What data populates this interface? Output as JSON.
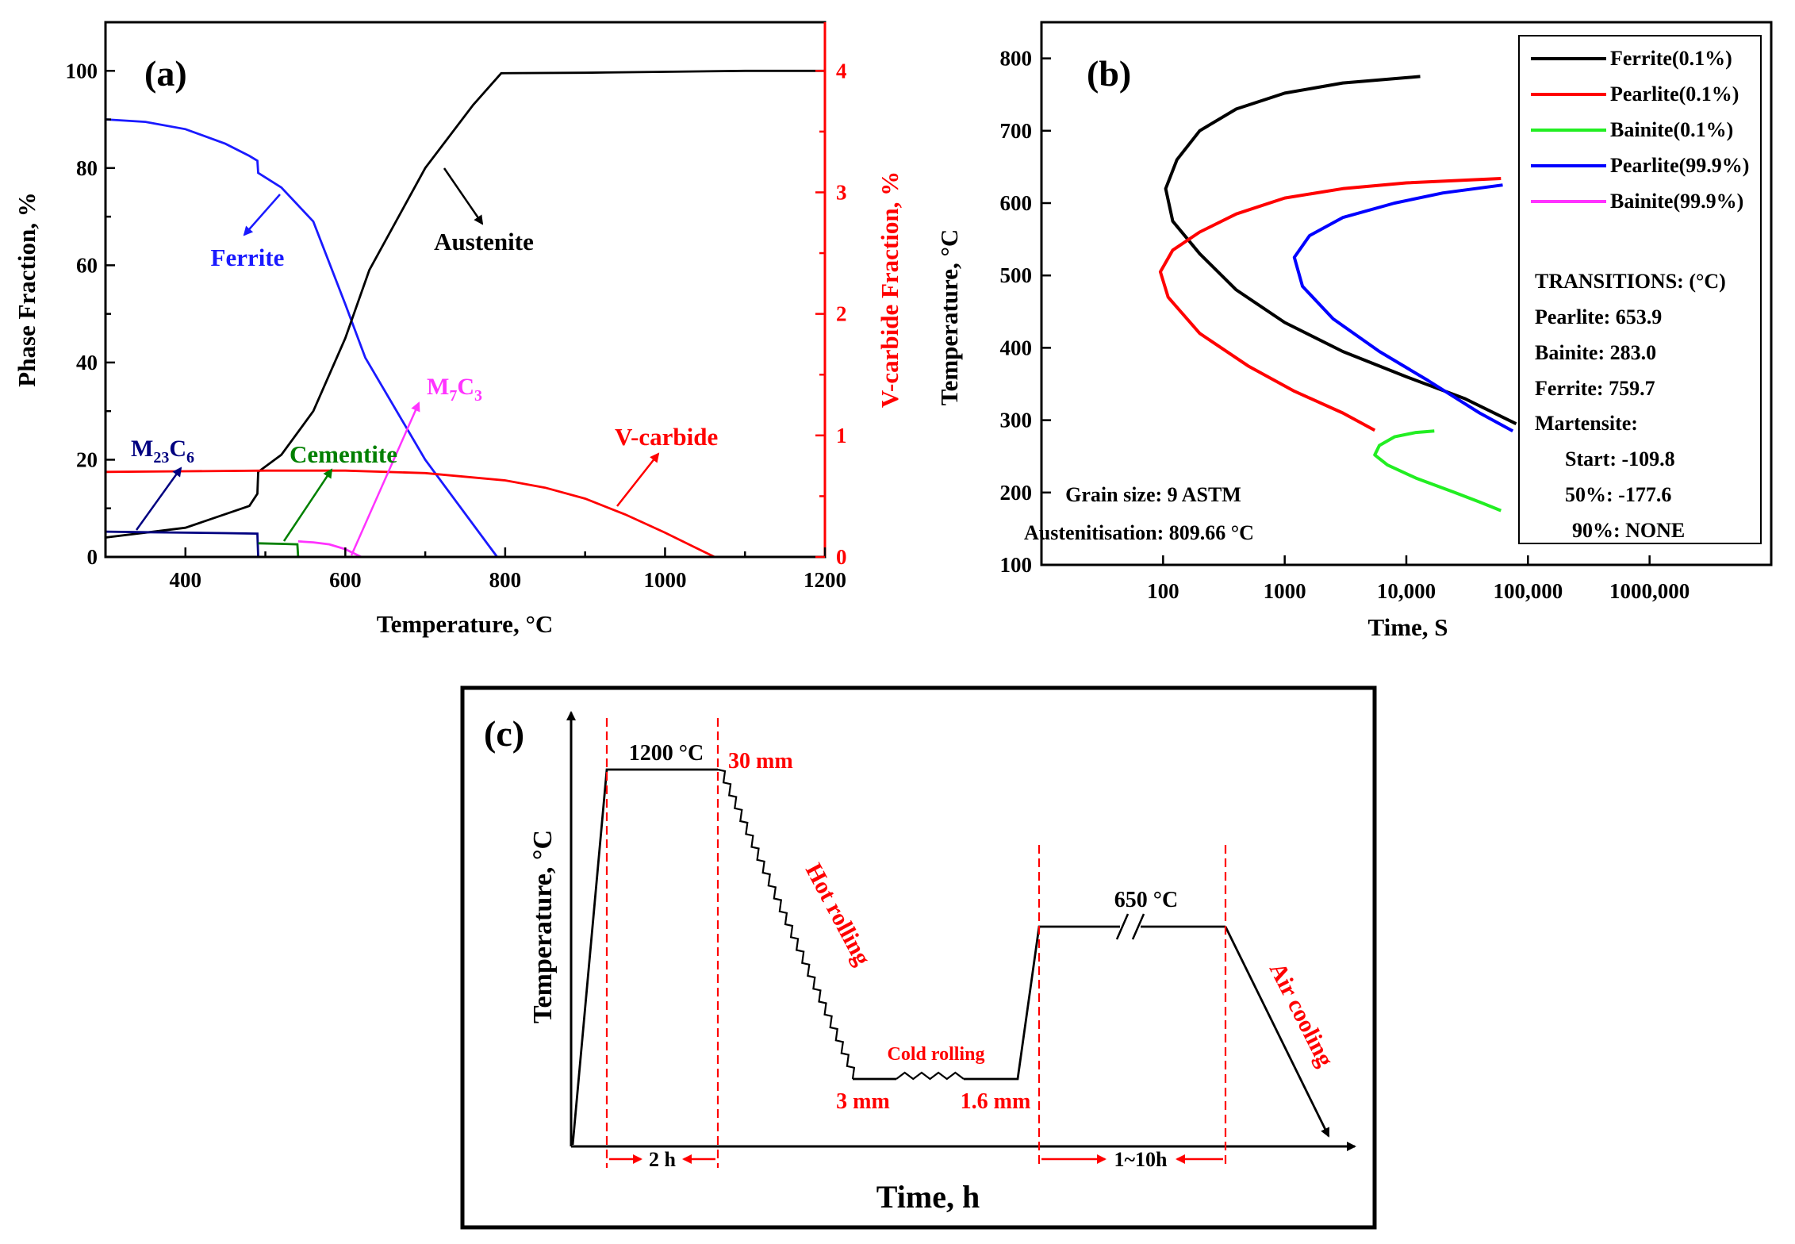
{
  "chart_data": [
    {
      "panel": "(a)",
      "type": "line",
      "xlabel": "Temperature, °C",
      "ylabel": "Phase Fraction, %",
      "y2label": "V-carbide Fraction, %",
      "xlim": [
        300,
        1200
      ],
      "ylim": [
        0,
        110
      ],
      "y2lim": [
        0,
        4.4
      ],
      "xticks": [
        "400",
        "600",
        "800",
        "1000",
        "1200"
      ],
      "yticks": [
        "0",
        "20",
        "40",
        "60",
        "80",
        "100"
      ],
      "y2ticks": [
        "0",
        "1",
        "2",
        "3",
        "4"
      ],
      "colors": {
        "ferrite": "#1a1aff",
        "austenite": "#000000",
        "m23c6": "#000080",
        "cementite": "#008000",
        "m7c3": "#ff33ff",
        "vcarbide": "#ff0000",
        "right_axis": "#ff0000"
      },
      "series": [
        {
          "name": "Ferrite",
          "axis": "left",
          "x": [
            300,
            350,
            400,
            450,
            480,
            490,
            491,
            520,
            560,
            600,
            625,
            700,
            790
          ],
          "y": [
            90,
            89.5,
            88,
            85,
            82.5,
            81.5,
            79,
            76,
            69,
            52,
            41,
            20,
            0
          ]
        },
        {
          "name": "Austenite",
          "axis": "left",
          "x": [
            300,
            400,
            480,
            490,
            491,
            520,
            560,
            600,
            630,
            700,
            760,
            795,
            900,
            1000,
            1100,
            1200
          ],
          "y": [
            4,
            6,
            10.5,
            13,
            17.5,
            21,
            30,
            45,
            59,
            80,
            93,
            99.5,
            99.6,
            99.8,
            100,
            100
          ]
        },
        {
          "name": "M23C6",
          "axis": "left",
          "x": [
            300,
            350,
            400,
            450,
            490,
            491
          ],
          "y": [
            5.2,
            5.1,
            5.0,
            4.9,
            4.8,
            0
          ]
        },
        {
          "name": "Cementite",
          "axis": "left",
          "x": [
            491,
            520,
            540,
            541
          ],
          "y": [
            2.8,
            2.7,
            2.6,
            0
          ]
        },
        {
          "name": "M7C3",
          "axis": "left",
          "x": [
            541,
            560,
            580,
            600,
            620
          ],
          "y": [
            3.2,
            3.0,
            2.6,
            1.6,
            0
          ]
        },
        {
          "name": "V-carbide",
          "axis": "right",
          "x": [
            300,
            400,
            500,
            600,
            700,
            800,
            850,
            900,
            950,
            1000,
            1040,
            1062
          ],
          "y": [
            0.7,
            0.705,
            0.71,
            0.71,
            0.69,
            0.63,
            0.57,
            0.48,
            0.35,
            0.2,
            0.07,
            0
          ]
        }
      ],
      "annotations": [
        {
          "text": "Ferrite",
          "color": "#1a1aff"
        },
        {
          "text": "Austenite",
          "color": "#000000"
        },
        {
          "text": "M",
          "sub1": "7",
          "mid": "C",
          "sub2": "3",
          "color": "#ff33ff"
        },
        {
          "text": "V-carbide",
          "color": "#ff0000"
        },
        {
          "text": "M",
          "sub1": "23",
          "mid": "C",
          "sub2": "6",
          "color": "#000080"
        },
        {
          "text": "Cementite",
          "color": "#008000"
        }
      ]
    },
    {
      "panel": "(b)",
      "type": "line",
      "xlabel": "Time, S",
      "ylabel": "Temperature, °C",
      "xscale": "log",
      "xlim": [
        10,
        10000000
      ],
      "ylim": [
        100,
        850
      ],
      "xticks": [
        "100",
        "1000",
        "10,000",
        "100,000",
        "1000,000"
      ],
      "yticks": [
        "100",
        "200",
        "300",
        "400",
        "500",
        "600",
        "700",
        "800"
      ],
      "series": [
        {
          "name": "Ferrite(0.1%)",
          "color": "#000000",
          "points": [
            [
              13000,
              775
            ],
            [
              3000,
              766
            ],
            [
              1000,
              752
            ],
            [
              400,
              730
            ],
            [
              200,
              700
            ],
            [
              130,
              660
            ],
            [
              105,
              620
            ],
            [
              120,
              575
            ],
            [
              200,
              530
            ],
            [
              400,
              480
            ],
            [
              1000,
              435
            ],
            [
              3000,
              395
            ],
            [
              10000,
              360
            ],
            [
              30000,
              330
            ],
            [
              80000,
              295
            ]
          ]
        },
        {
          "name": "Pearlite(0.1%)",
          "color": "#ff0000",
          "points": [
            [
              60000,
              634
            ],
            [
              10000,
              628
            ],
            [
              3000,
              620
            ],
            [
              1000,
              607
            ],
            [
              400,
              585
            ],
            [
              200,
              560
            ],
            [
              120,
              535
            ],
            [
              95,
              505
            ],
            [
              110,
              470
            ],
            [
              200,
              420
            ],
            [
              500,
              375
            ],
            [
              1200,
              340
            ],
            [
              3000,
              310
            ],
            [
              5500,
              286
            ]
          ]
        },
        {
          "name": "Bainite(0.1%)",
          "color": "#22ee22",
          "points": [
            [
              17000,
              285
            ],
            [
              12000,
              283
            ],
            [
              8000,
              277
            ],
            [
              6000,
              265
            ],
            [
              5500,
              252
            ],
            [
              7000,
              238
            ],
            [
              12000,
              220
            ],
            [
              25000,
              200
            ],
            [
              40000,
              187
            ],
            [
              60000,
              175
            ]
          ]
        },
        {
          "name": "Pearlite(99.9%)",
          "color": "#0000ff",
          "points": [
            [
              62000,
              625
            ],
            [
              20000,
              614
            ],
            [
              8000,
              600
            ],
            [
              3000,
              580
            ],
            [
              1600,
              555
            ],
            [
              1200,
              525
            ],
            [
              1400,
              485
            ],
            [
              2500,
              440
            ],
            [
              6000,
              395
            ],
            [
              15000,
              355
            ],
            [
              40000,
              310
            ],
            [
              75000,
              285
            ]
          ]
        },
        {
          "name": "Bainite(99.9%)",
          "color": "#ff33ff",
          "points": []
        }
      ],
      "annotations": [
        "Grain size: 9 ASTM",
        "Austenitisation: 809.66 °C"
      ],
      "legend_text": [
        "TRANSITIONS: (°C)",
        "Pearlite: 653.9",
        "Bainite: 283.0",
        "Ferrite: 759.7",
        "Martensite:",
        "Start: -109.8",
        "50%: -177.6",
        "90%: NONE"
      ]
    },
    {
      "panel": "(c)",
      "type": "schematic",
      "xlabel": "Time, h",
      "ylabel": "Temperature, °C",
      "labels": {
        "reheat_temp": "1200 °C",
        "start_thickness": "30 mm",
        "hot_rolling": "Hot rolling",
        "cold_rolling": "Cold rolling",
        "hot_thickness": "3 mm",
        "cold_thickness": "1.6 mm",
        "anneal_temp": "650 °C",
        "air_cooling": "Air cooling",
        "soak_time": "2 h",
        "anneal_time": "1~10h"
      }
    }
  ]
}
